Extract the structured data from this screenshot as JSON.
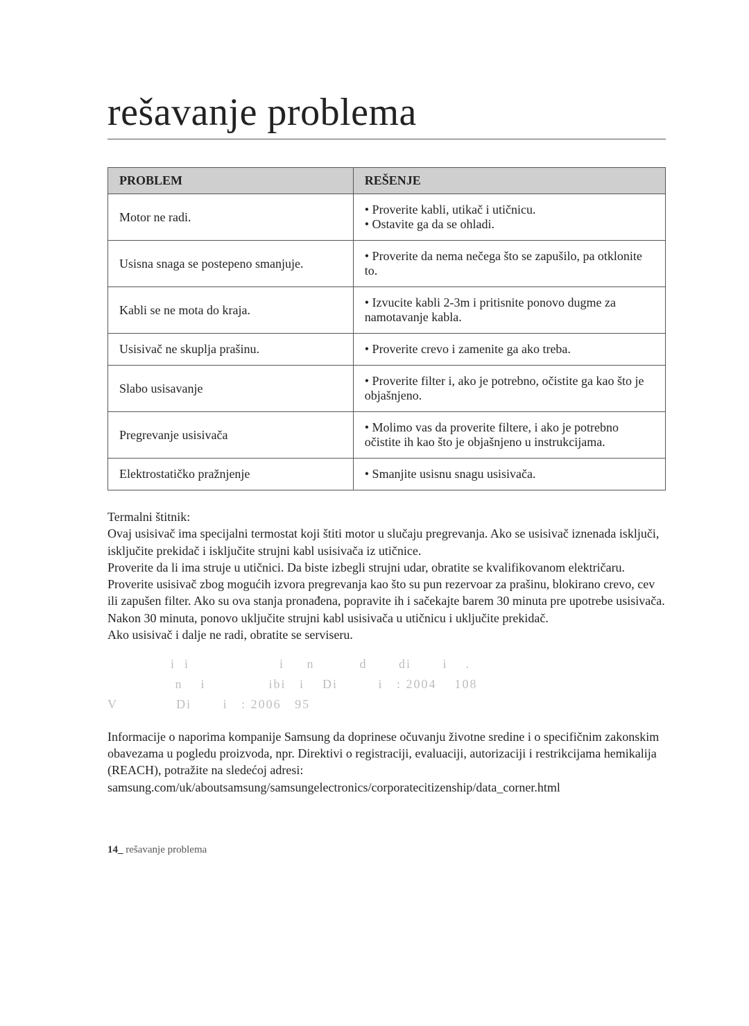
{
  "title": "rešavanje problema",
  "table": {
    "headers": {
      "problem": "PROBLEM",
      "solution": "REŠENJE"
    },
    "rows": [
      {
        "problem": "Motor ne radi.",
        "solution": "• Proverite kabli, utikač i utičnicu.\n• Ostavite ga da se ohladi."
      },
      {
        "problem": "Usisna snaga se postepeno smanjuje.",
        "solution": "• Proverite da nema nečega što se zapušilo, pa otklonite to."
      },
      {
        "problem": "Kabli se ne mota do kraja.",
        "solution": "• Izvucite kabli 2-3m i pritisnite ponovo dugme za namotavanje kabla."
      },
      {
        "problem": "Usisivač ne skuplja prašinu.",
        "solution": "• Proverite crevo i zamenite ga ako treba."
      },
      {
        "problem": "Slabo usisavanje",
        "solution": "• Proverite filter i, ako je potrebno, očistite ga kao što je objašnjeno."
      },
      {
        "problem": "Pregrevanje usisivača",
        "solution": "• Molimo vas da proverite filtere, i ako je potrebno očistite ih kao što je objašnjeno u instrukcijama."
      },
      {
        "problem": "Elektrostatičko pražnjenje",
        "solution": "• Smanjite usisnu snagu usisivača."
      }
    ]
  },
  "paragraphs": {
    "thermal_title": "Termalni štitnik:",
    "thermal_body": "Ovaj usisivač ima specijalni termostat koji štiti motor u slučaju pregrevanja. Ako se usisivač iznenada isključi, isključite prekidač i isključite strujni kabl usisivača iz utičnice.\nProverite da li ima struje u utičnici. Da biste izbegli strujni udar, obratite se kvalifikovanom električaru.\nProverite usisivač zbog mogućih izvora pregrevanja kao što su pun rezervoar za prašinu, blokirano crevo, cev ili zapušen filter. Ako su ova stanja pronađena, popravite ih i sačekajte barem 30 minuta pre upotrebe usisivača. Nakon 30 minuta, ponovo uključite strujni kabl usisivača u utičnicu i uključite prekidač.\nAko usisivač i dalje ne radi, obratite se serviseru.",
    "faded": "              i  i                    i     n          d       di       i    .\n               n    i              ibi   i    Di         i   : 2004    108\nV             Di       i   : 2006   95",
    "reach": "Informacije o naporima kompanije Samsung da doprinese očuvanju životne sredine i o specifičnim zakonskim obavezama u pogledu proizvoda, npr. Direktivi o registraciji, evaluaciji, autorizaciji i restrikcijama hemikalija (REACH), potražite na sledećoj adresi: samsung.com/uk/aboutsamsung/samsungelectronics/corporatecitizenship/data_corner.html"
  },
  "footer": {
    "page_num": "14_",
    "label": " rešavanje problema"
  }
}
